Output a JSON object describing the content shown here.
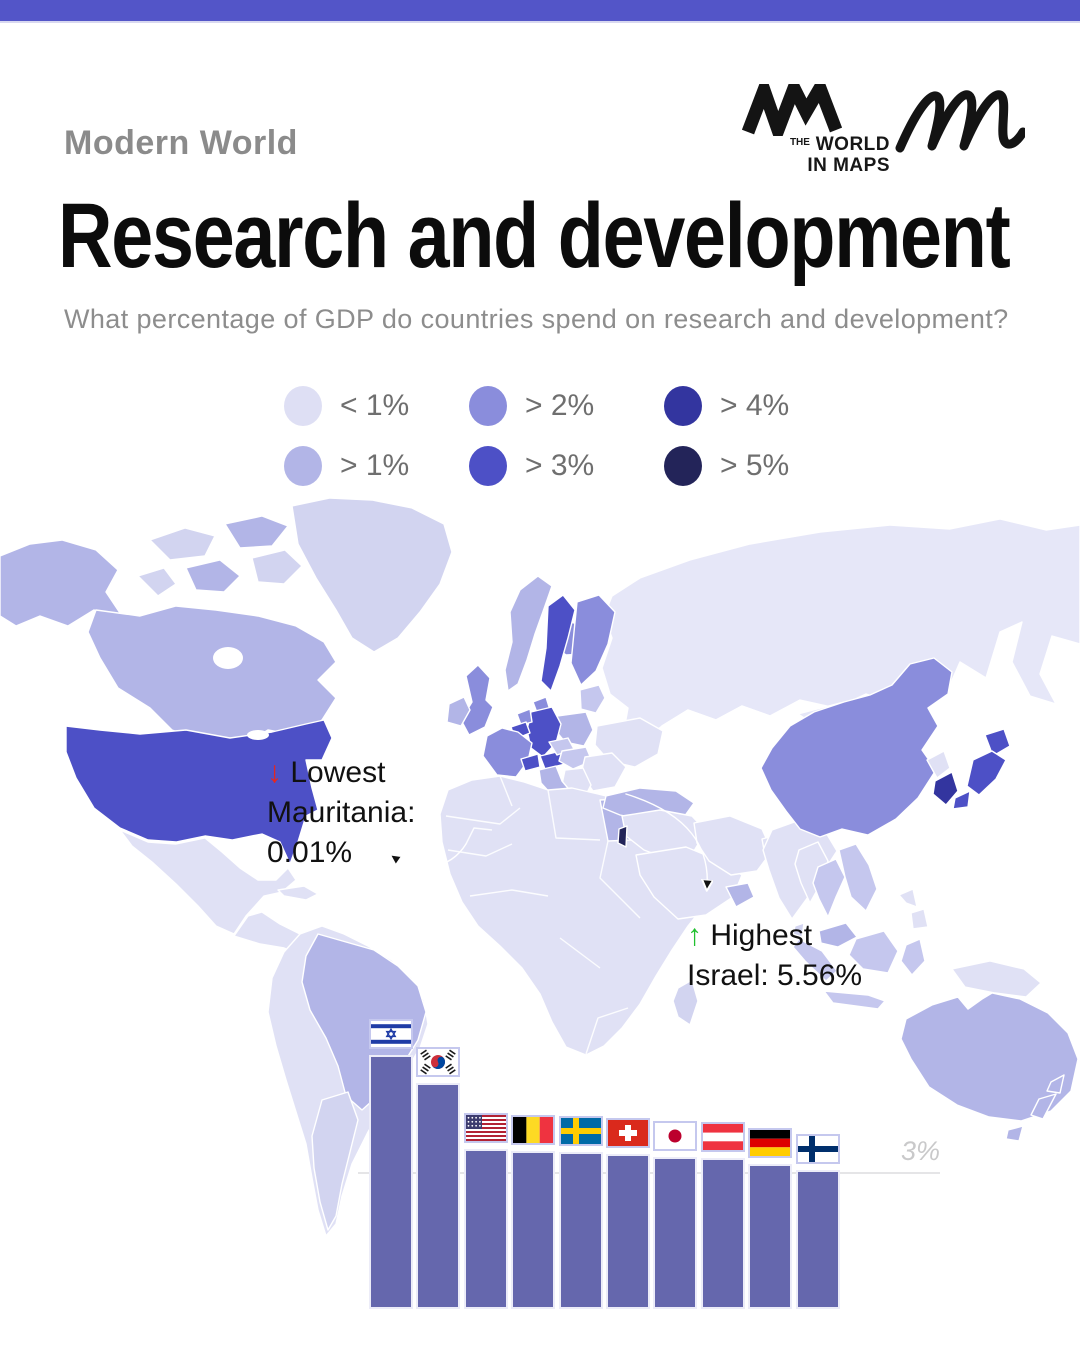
{
  "page": {
    "topbar_color": "#5355c8"
  },
  "header": {
    "kicker": "Modern World",
    "title": "Research and development",
    "subtitle": "What percentage of GDP do countries spend on research and development?"
  },
  "brand": {
    "the": "THE",
    "world": "WORLD",
    "in_maps": "IN MAPS"
  },
  "legend": {
    "items": [
      {
        "key": "lt1",
        "label": "< 1%"
      },
      {
        "key": "gt1",
        "label": "> 1%"
      },
      {
        "key": "gt2",
        "label": "> 2%"
      },
      {
        "key": "gt3",
        "label": "> 3%"
      },
      {
        "key": "gt4",
        "label": "> 4%"
      },
      {
        "key": "gt5",
        "label": "> 5%"
      }
    ],
    "palette": {
      "lt1": "#dedff4",
      "gt1": "#b2b5e7",
      "gt2": "#8a8ddc",
      "gt3": "#4d50c6",
      "gt4": "#33359f",
      "gt5": "#232459"
    }
  },
  "map": {
    "ocean": "#ffffff",
    "shades": {
      "base": "#e0e1f5",
      "pale": "#e6e7f8",
      "soft": "#d2d4f0",
      "mild": "#c5c7ee",
      "nodata": "#ffffff"
    },
    "countries": {
      "alaska": "gt1",
      "canada": "gt1",
      "arctic-1": "soft",
      "arctic-2": "gt1",
      "arctic-3": "gt1",
      "arctic-4": "soft",
      "arctic-5": "soft",
      "greenland": "soft",
      "usa": "gt3",
      "mexico": "base",
      "central-america": "base",
      "cuba": "base",
      "south-america": "base",
      "brazil": "gt1",
      "argentina": "soft",
      "iceland": "gt2",
      "norway": "gt1",
      "sweden": "gt3",
      "finland": "gt2",
      "denmark": "gt2",
      "uk": "gt2",
      "ireland": "gt1",
      "baltics": "mild",
      "poland": "gt1",
      "germany": "gt3",
      "netherlands": "gt2",
      "belgium": "gt3",
      "france": "gt2",
      "switzerland": "gt3",
      "austria": "gt3",
      "czechia": "mild",
      "hungary": "mild",
      "ukraine": "base",
      "romania": "base",
      "balkans": "base",
      "greece": "gt1",
      "italy": "gt1",
      "sicily": "gt1",
      "spain": "gt1",
      "portugal": "gt1",
      "russia": "pale",
      "kazakhstan": "nodata",
      "turkey": "gt1",
      "middle-east": "base",
      "israel": "gt5",
      "saudi": "base",
      "gulf": "gt1",
      "iran": "base",
      "pakistan": "base",
      "india": "base",
      "sri-lanka": "soft",
      "mongolia": "pale",
      "china": "gt2",
      "north-korea": "base",
      "south-korea": "gt4",
      "japan": "gt3",
      "myanmar": "base",
      "thailand": "mild",
      "vietnam": "mild",
      "malaysia": "gt1",
      "sumatra": "mild",
      "java": "mild",
      "borneo": "mild",
      "sulawesi": "mild",
      "philippines": "base",
      "new-guinea": "base",
      "australia": "gt1",
      "tasmania": "gt1",
      "new-zealand": "gt1",
      "africa": "base",
      "egypt": "gt1",
      "madagascar": "soft"
    },
    "annotations": {
      "lowest": {
        "arrow": "↓",
        "title": "Lowest",
        "detail": "Mauritania:",
        "value": "0.01%",
        "arrow_color": "#e52620"
      },
      "highest": {
        "arrow": "↑",
        "title": "Highest",
        "detail": "Israel: 5.56%",
        "arrow_color": "#21c02f"
      }
    }
  },
  "chart_data": {
    "type": "bar",
    "categories": [
      "Israel",
      "South Korea",
      "United States",
      "Belgium",
      "Sweden",
      "Switzerland",
      "Japan",
      "Austria",
      "Germany",
      "Finland"
    ],
    "flags": [
      "IL",
      "KR",
      "US",
      "BE",
      "SE",
      "CH",
      "JP",
      "AT",
      "DE",
      "FI"
    ],
    "values": [
      5.56,
      4.93,
      3.46,
      3.43,
      3.4,
      3.36,
      3.3,
      3.26,
      3.13,
      2.99
    ],
    "unit": "% of GDP",
    "gridline": {
      "value": 3,
      "label": "3%"
    },
    "bar_color": "#6567ad",
    "ylim": [
      0,
      6
    ],
    "legend_position": "none"
  }
}
